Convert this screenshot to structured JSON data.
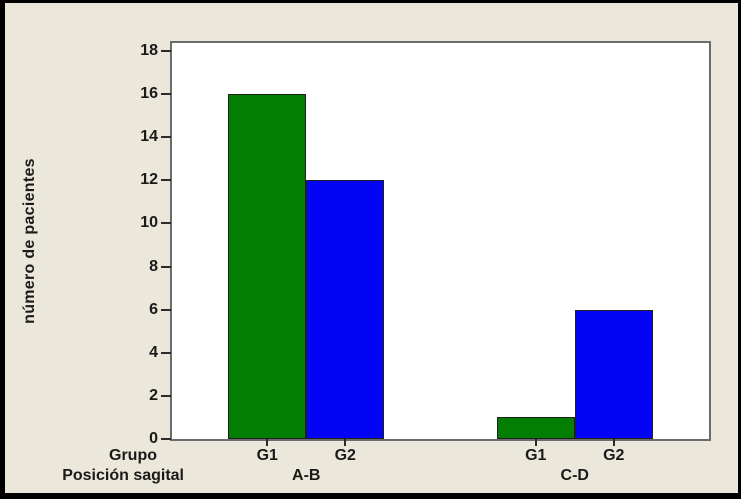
{
  "chart_data": {
    "type": "bar",
    "title": "",
    "ylabel": "número de pacientes",
    "group_axis_label": "Grupo",
    "category_axis_label": "Posición sagital",
    "categories": [
      "A-B",
      "C-D"
    ],
    "series": [
      {
        "name": "G1",
        "color": "#027E02",
        "values": [
          16,
          1
        ]
      },
      {
        "name": "G2",
        "color": "#0404F4",
        "values": [
          12,
          6
        ]
      }
    ],
    "ylim": [
      0,
      18
    ],
    "yticks": [
      0,
      2,
      4,
      6,
      8,
      10,
      12,
      14,
      16,
      18
    ],
    "grid": false,
    "legend_position": "none",
    "colors": {
      "background": "#EBE7DA",
      "plot_background": "#FFFFFF",
      "plot_border": "#6B6B6B",
      "bar_outline": "#202020",
      "text": "#1A1A1A",
      "frame_border": "#000000"
    }
  }
}
